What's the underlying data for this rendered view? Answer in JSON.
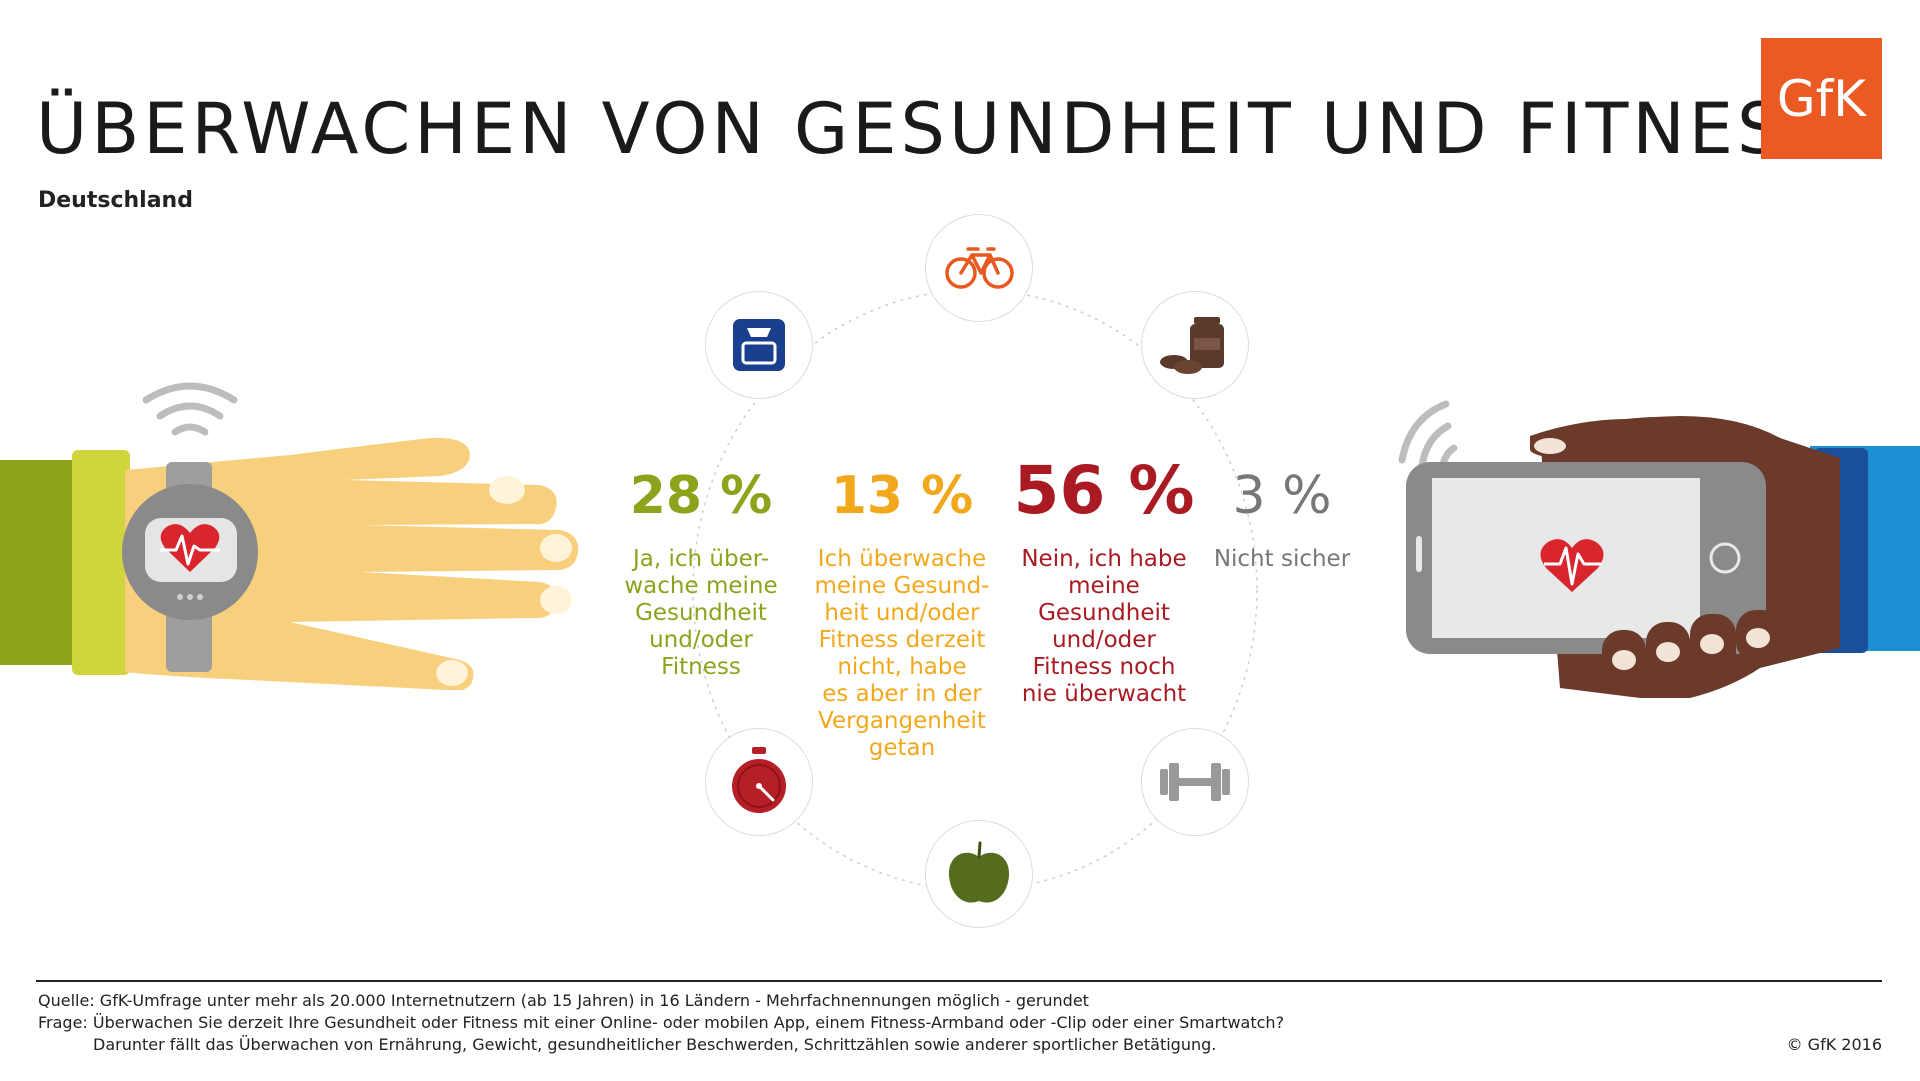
{
  "title": "ÜBERWACHEN VON GESUNDHEIT UND FITNESS",
  "subtitle": "Deutschland",
  "logo": "GfK",
  "stats": [
    {
      "value": "28 %",
      "label_lines": [
        "Ja, ich über-",
        "wache meine",
        "Gesundheit",
        "und/oder",
        "Fitness"
      ],
      "color": "#8ea21c"
    },
    {
      "value": "13 %",
      "label_lines": [
        "Ich überwache",
        "meine Gesund-",
        "heit und/oder",
        "Fitness derzeit",
        "nicht, habe",
        "es aber in der",
        "Vergangenheit",
        "getan"
      ],
      "color": "#f2a81d"
    },
    {
      "value": "56 %",
      "label_lines": [
        "Nein, ich habe",
        "meine",
        "Gesundheit",
        "und/oder",
        "Fitness noch",
        "nie überwacht"
      ],
      "color": "#a91a22"
    },
    {
      "value": "3 %",
      "label_lines": [
        "Nicht sicher"
      ],
      "color": "#777777"
    }
  ],
  "icons": [
    "bicycle-icon",
    "supplements-icon",
    "dumbbell-icon",
    "apple-icon",
    "stopwatch-icon",
    "scale-icon",
    "smartwatch-heart-icon",
    "smartphone-heart-icon",
    "wifi-signal-icon"
  ],
  "footer": {
    "source": "Quelle: GfK-Umfrage unter mehr als 20.000 Internetnutzern (ab 15 Jahren) in 16 Ländern - Mehrfachnennungen möglich - gerundet",
    "question": "Frage: Überwachen Sie derzeit Ihre Gesundheit oder Fitness mit einer Online- oder mobilen App, einem Fitness-Armband  oder -Clip oder einer Smartwatch?",
    "note": "Darunter fällt das Überwachen von Ernährung, Gewicht, gesundheitlicher Beschwerden, Schrittzählen sowie anderer sportlicher Betätigung.",
    "copyright": "© GfK 2016"
  }
}
